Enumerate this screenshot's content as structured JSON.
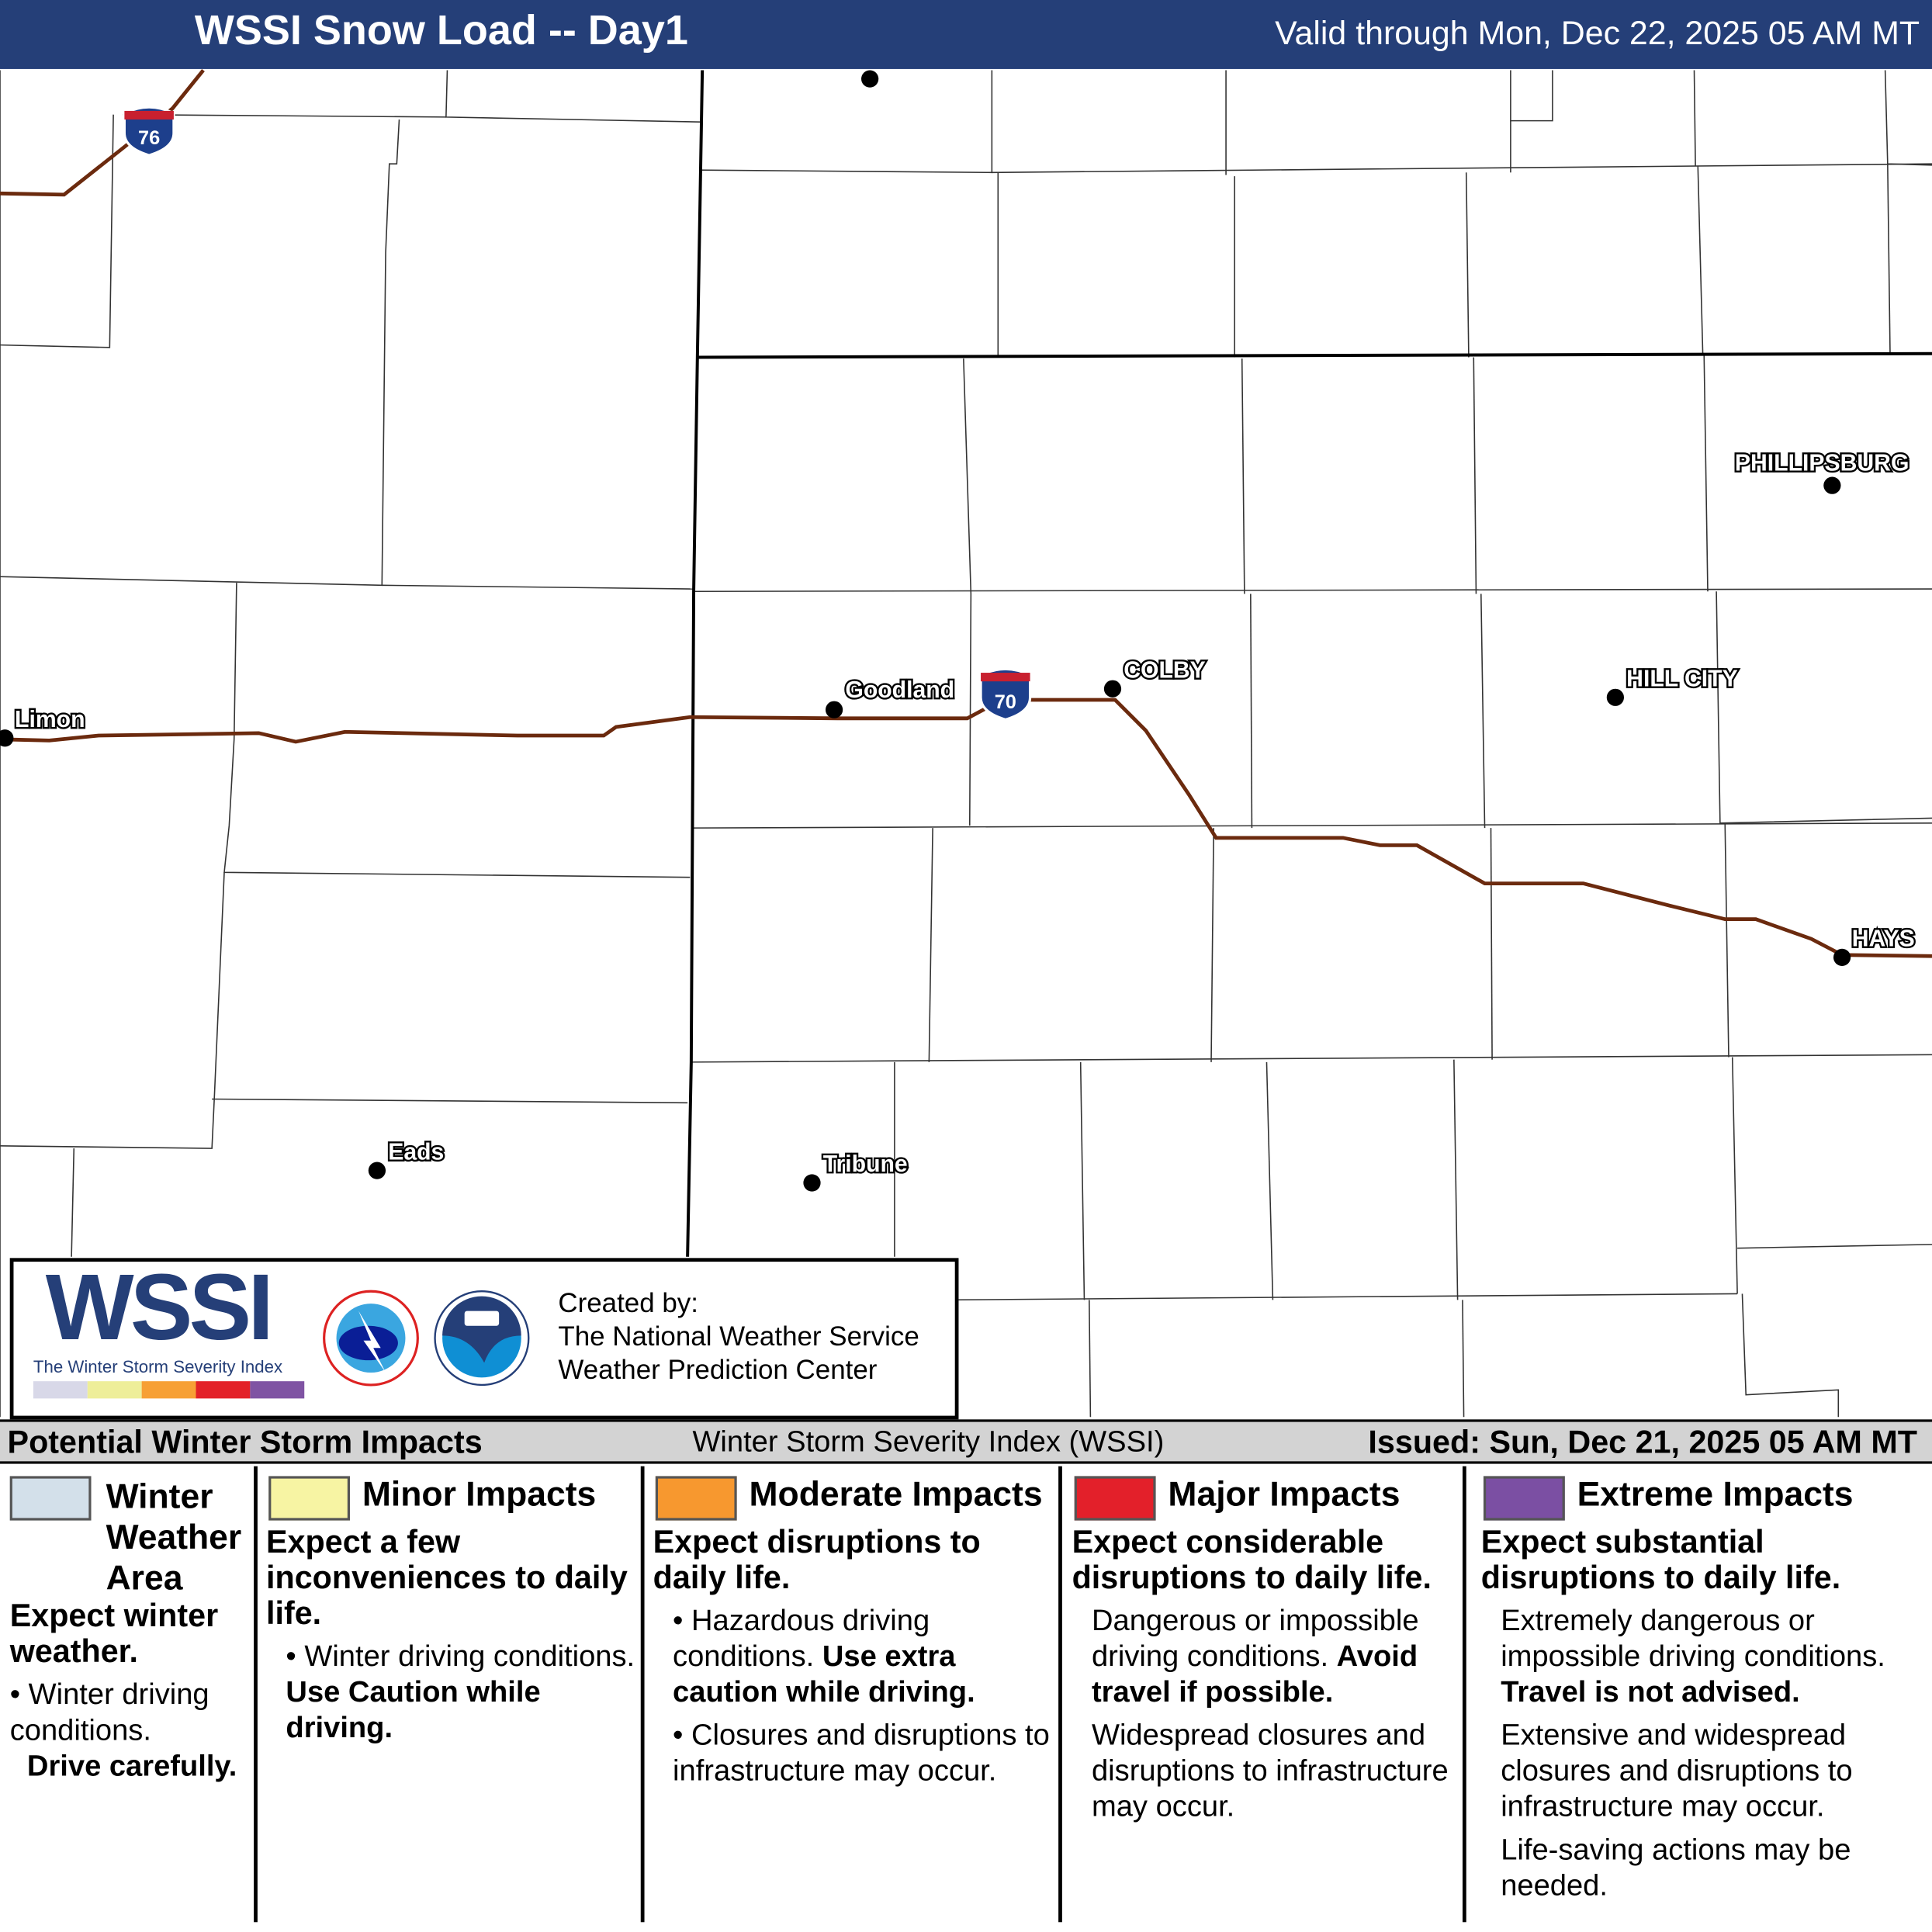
{
  "header": {
    "title": "WSSI Snow Load -- Day1",
    "valid": "Valid through Mon, Dec 22, 2025 05 AM MT"
  },
  "map": {
    "road_color": "#6b2a0e",
    "cities": [
      {
        "name": "Limon"
      },
      {
        "name": "Goodland"
      },
      {
        "name": "COLBY"
      },
      {
        "name": "HILL CITY"
      },
      {
        "name": "PHILLIPSBURG"
      },
      {
        "name": "HAYS"
      },
      {
        "name": "Eads"
      },
      {
        "name": "Tribune"
      }
    ],
    "shields": [
      {
        "label": "76"
      },
      {
        "label": "70"
      }
    ]
  },
  "logo": {
    "wordmark": "WSSI",
    "tagline": "The Winter Storm Severity Index",
    "colors": [
      "#d8d8e8",
      "#eeee99",
      "#f7a035",
      "#e32128",
      "#7f53a3"
    ],
    "created_by": [
      "Created by:",
      "The National Weather Service",
      "Weather Prediction Center"
    ]
  },
  "legend": {
    "title": "Potential Winter Storm Impacts",
    "subtitle": "Winter Storm Severity Index (WSSI)",
    "issued": "Issued: Sun, Dec 21, 2025 05 AM MT",
    "categories": [
      {
        "name": "Winter Weather Area",
        "color": "#d3e0ea",
        "lead": "Expect winter weather.",
        "items": [
          "Winter driving conditions.",
          "Drive carefully."
        ]
      },
      {
        "name": "Minor Impacts",
        "color": "#f7f4a3",
        "lead": "Expect a few inconveniences to daily life.",
        "items": [
          "Winter driving conditions.",
          "Use Caution while driving."
        ]
      },
      {
        "name": "Moderate Impacts",
        "color": "#f7982f",
        "lead": "Expect disruptions to daily life.",
        "items": [
          "Hazardous driving conditions.",
          "Use extra caution while driving.",
          "Closures and disruptions to infrastructure may occur."
        ]
      },
      {
        "name": "Major Impacts",
        "color": "#e3202a",
        "lead": "Expect considerable disruptions to daily life.",
        "items": [
          "Dangerous or impossible driving conditions.",
          "Avoid travel if possible.",
          "Widespread closures and disruptions to infrastructure may occur."
        ]
      },
      {
        "name": "Extreme Impacts",
        "color": "#7b4fa3",
        "lead": "Expect substantial disruptions to daily life.",
        "items": [
          "Extremely dangerous or impossible driving conditions.",
          "Travel is not advised.",
          "Extensive and widespread closures and disruptions to infrastructure may occur.",
          "Life-saving actions may be needed."
        ]
      }
    ]
  }
}
